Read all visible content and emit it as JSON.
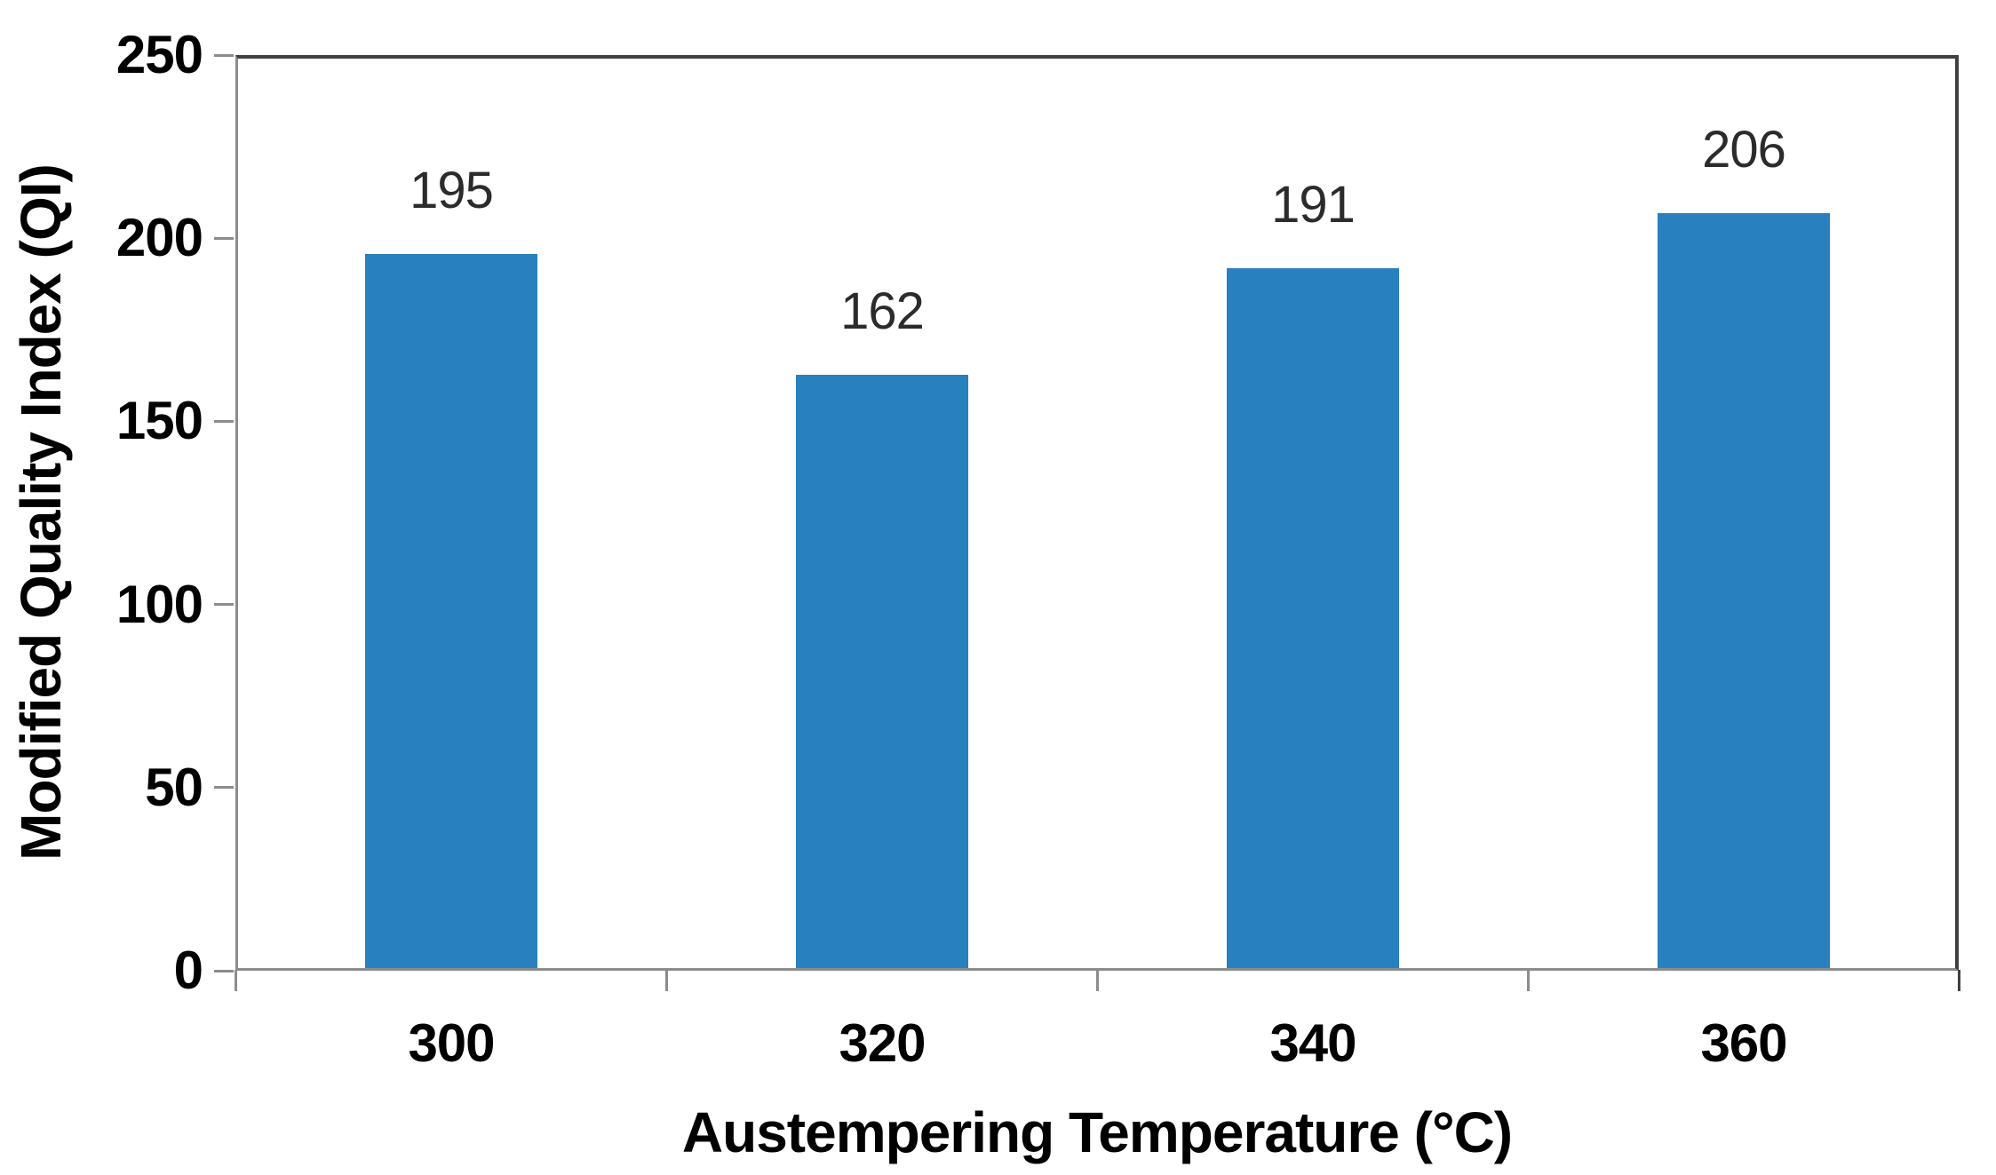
{
  "chart_data": {
    "type": "bar",
    "categories": [
      "300",
      "320",
      "340",
      "360"
    ],
    "values": [
      195,
      162,
      191,
      206
    ],
    "data_labels": [
      "195",
      "162",
      "191",
      "206"
    ],
    "title": "",
    "xlabel": "Austempering Temperature (°C)",
    "ylabel": "Modified Quality Index (QI)",
    "ylim": [
      0,
      250
    ],
    "yticks": [
      0,
      50,
      100,
      150,
      200,
      250
    ],
    "grid": false,
    "legend_position": "none",
    "bar_gap_ratio": 0.6,
    "colors": {
      "bar": "#2880BE",
      "axis_line": "#8C8C8C",
      "plot_border": "#404040",
      "tick_label": "#000000",
      "data_label": "#2B2B2B",
      "background": "#FFFFFF"
    }
  }
}
